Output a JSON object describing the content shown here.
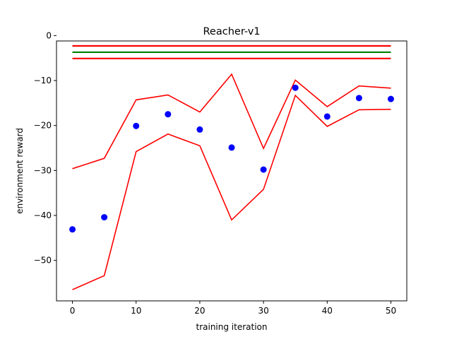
{
  "chart_data": {
    "type": "line",
    "title": "Reacher-v1",
    "xlabel": "training iteration",
    "ylabel": "environment reward",
    "xlim": [
      -2.5,
      52.5
    ],
    "ylim": [
      -59.0,
      -1.2
    ],
    "xticks": [
      0,
      10,
      20,
      30,
      40,
      50
    ],
    "xtick_labels": [
      "0",
      "10",
      "20",
      "30",
      "40",
      "50"
    ],
    "yticks": [
      0,
      -10,
      -20,
      -30,
      -40,
      -50
    ],
    "ytick_labels": [
      "0",
      "−10",
      "−20",
      "−30",
      "−40",
      "−50"
    ],
    "grid": false,
    "legend": "none",
    "colors": {
      "mean": "#0000ff",
      "band": "#ff0000",
      "reference": "#008000",
      "reference_band": "#ff0000"
    },
    "x": [
      0,
      5,
      10,
      15,
      20,
      25,
      30,
      35,
      40,
      45,
      50
    ],
    "series": [
      {
        "kind": "points",
        "color": "#0000ff",
        "values": [
          -43.1,
          -40.4,
          -20.1,
          -17.5,
          -20.9,
          -24.9,
          -29.8,
          -11.6,
          -18.0,
          -13.9,
          -14.1
        ]
      },
      {
        "kind": "line",
        "color": "#ff0000",
        "values": [
          -29.6,
          -27.3,
          -14.3,
          -13.2,
          -17.0,
          -8.6,
          -25.1,
          -9.9,
          -15.8,
          -11.2,
          -11.7
        ]
      },
      {
        "kind": "line",
        "color": "#ff0000",
        "values": [
          -56.5,
          -53.4,
          -25.8,
          -21.9,
          -24.5,
          -41.0,
          -34.2,
          -13.3,
          -20.2,
          -16.5,
          -16.4
        ]
      }
    ],
    "reference_lines": [
      {
        "y": -2.3,
        "color": "#ff0000"
      },
      {
        "y": -3.7,
        "color": "#008000"
      },
      {
        "y": -5.1,
        "color": "#ff0000"
      }
    ],
    "reference_x_range": [
      0,
      50
    ]
  }
}
